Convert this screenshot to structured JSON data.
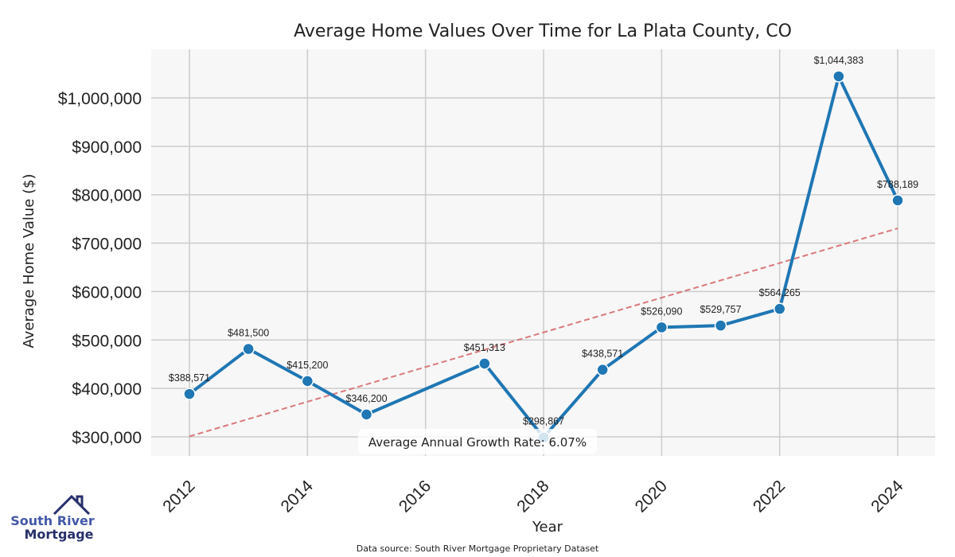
{
  "chart_data": {
    "type": "line",
    "title": "Average Home Values Over Time for La Plata County, CO",
    "xlabel": "Year",
    "ylabel": "Average Home Value ($)",
    "x": [
      2012,
      2013,
      2014,
      2015,
      2017,
      2018,
      2019,
      2020,
      2021,
      2022,
      2023,
      2024
    ],
    "series": [
      {
        "name": "Average Home Value",
        "color": "#1f77b4",
        "values": [
          388571,
          481500,
          415200,
          346200,
          451313,
          298867,
          438571,
          526090,
          529757,
          564265,
          1044383,
          788189
        ],
        "labels": [
          "$388,571",
          "$481,500",
          "$415,200",
          "$346,200",
          "$451,313",
          "$298,867",
          "$438,571",
          "$526,090",
          "$529,757",
          "$564,265",
          "$1,044,383",
          "$788,189"
        ]
      },
      {
        "name": "Trend",
        "color": "#d9797b",
        "style": "dashed",
        "x": [
          2012,
          2024
        ],
        "values": [
          301000,
          730500
        ]
      }
    ],
    "xticks": [
      2012,
      2014,
      2016,
      2018,
      2020,
      2022,
      2024
    ],
    "xtick_labels": [
      "2012",
      "2014",
      "2016",
      "2018",
      "2020",
      "2022",
      "2024"
    ],
    "yticks": [
      300000,
      400000,
      500000,
      600000,
      700000,
      800000,
      900000,
      1000000
    ],
    "ytick_labels": [
      "$300,000",
      "$400,000",
      "$500,000",
      "$600,000",
      "$700,000",
      "$800,000",
      "$900,000",
      "$1,000,000"
    ],
    "xlim": [
      2011.35,
      2024.65
    ],
    "ylim": [
      260000,
      1100000
    ],
    "grid": true,
    "annotation": "Average Annual Growth Rate: 6.07%"
  },
  "footer": {
    "source": "Data source: South River Mortgage Proprietary Dataset"
  },
  "logo": {
    "line1": "South River",
    "line2": "Mortgage"
  }
}
